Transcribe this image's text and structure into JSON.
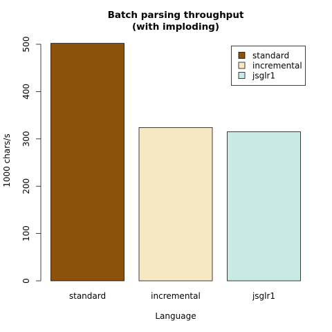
{
  "chart_data": {
    "type": "bar",
    "title_line1": "Batch parsing throughput",
    "title_line2": "(with imploding)",
    "xlabel": "Language",
    "ylabel": "1000 chars/s",
    "categories": [
      "standard",
      "incremental",
      "jsglr1"
    ],
    "values": [
      502,
      324,
      315
    ],
    "colors": [
      "#8c510a",
      "#f6e8c3",
      "#c7eae5"
    ],
    "ylim": [
      0,
      500
    ],
    "yticks": [
      "0",
      "100",
      "200",
      "300",
      "400",
      "500"
    ],
    "legend": {
      "position": "top-right",
      "entries": [
        "standard",
        "incremental",
        "jsglr1"
      ]
    },
    "grid": false
  }
}
